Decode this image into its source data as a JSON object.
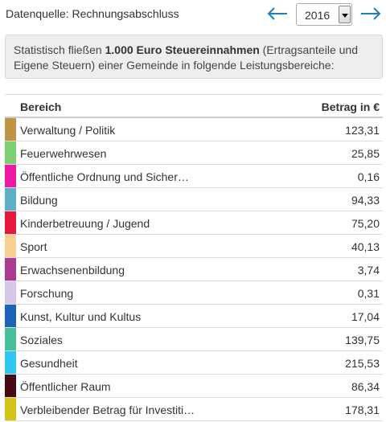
{
  "header": {
    "source_label": "Datenquelle: Rechnungsabschluss",
    "year": "2016",
    "prev_icon": "arrow-left-icon",
    "next_icon": "arrow-right-icon",
    "accent_color": "#1b7fc4"
  },
  "info": {
    "text_before": "Statistisch fließen ",
    "text_bold": "1.000 Euro Steuereinnahmen",
    "text_after": " (Ertragsanteile und Eigene Steuern) einer Gemeinde in folgende Leistungsbereiche:"
  },
  "table": {
    "col_area": "Bereich",
    "col_amount": "Betrag in €",
    "rows": [
      {
        "name": "Verwaltung / Politik",
        "value": "123,31",
        "color": "#bf9444"
      },
      {
        "name": "Feuerwehrwesen",
        "value": "25,85",
        "color": "#7dd071"
      },
      {
        "name": "Öffentliche Ordnung und Sicher…",
        "value": "0,16",
        "color": "#ec1aa0"
      },
      {
        "name": "Bildung",
        "value": "94,33",
        "color": "#5eaec5"
      },
      {
        "name": "Kinderbetreuung / Jugend",
        "value": "75,20",
        "color": "#e5173d"
      },
      {
        "name": "Sport",
        "value": "40,13",
        "color": "#f8cf92"
      },
      {
        "name": "Erwachsenenbildung",
        "value": "3,74",
        "color": "#ab3b90"
      },
      {
        "name": "Forschung",
        "value": "0,31",
        "color": "#d6c6e8"
      },
      {
        "name": "Kunst, Kultur und Kultus",
        "value": "17,04",
        "color": "#1f63b8"
      },
      {
        "name": "Soziales",
        "value": "139,75",
        "color": "#46c09b"
      },
      {
        "name": "Gesundheit",
        "value": "215,53",
        "color": "#2fc7f1"
      },
      {
        "name": "Öffentlicher Raum",
        "value": "86,34",
        "color": "#470a12"
      },
      {
        "name": "Verbleibender Betrag für Investiti…",
        "value": "178,31",
        "color": "#d4c419"
      }
    ]
  }
}
